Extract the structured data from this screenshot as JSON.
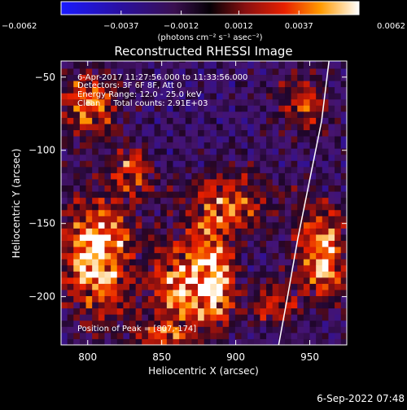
{
  "chart_data": {
    "type": "heatmap",
    "title": "Reconstructed RHESSI Image",
    "xlabel": "Heliocentric X (arcsec)",
    "ylabel": "Heliocentric Y (arcsec)",
    "xlim": [
      782,
      975
    ],
    "ylim": [
      -233,
      -39
    ],
    "xticks": [
      800,
      850,
      900,
      950
    ],
    "yticks": [
      -50,
      -100,
      -150,
      -200
    ],
    "ytick_labels": [
      "−50",
      "−100",
      "−150",
      "−200"
    ],
    "colorbar": {
      "range": [
        -0.0062,
        0.0062
      ],
      "ticks": [
        -0.0062,
        -0.0037,
        -0.0012,
        0.0012,
        0.0037,
        0.0062
      ],
      "tick_labels": [
        "−0.0062",
        "−0.0037",
        "−0.0012",
        "0.0012",
        "0.0037",
        "0.0062"
      ],
      "unit_label": "(photons cm⁻² s⁻¹ asec⁻²)"
    },
    "annotations": [
      "6-Apr-2017 11:27:56.000 to 11:33:56.000",
      "Detectors: 3F 6F 8F, Att 0",
      "Energy Range: 12.0 - 25.0 keV",
      "Clean     Total counts: 2.91E+03"
    ],
    "peak_label": "Position of Peak = [807,-174]",
    "peak": [
      807,
      -174
    ],
    "sources": [
      {
        "x": 807,
        "y": -172,
        "sx": 16,
        "sy": 28,
        "amp": 1.0
      },
      {
        "x": 885,
        "y": -188,
        "sx": 10,
        "sy": 24,
        "amp": 0.95
      },
      {
        "x": 860,
        "y": -190,
        "sx": 12,
        "sy": 20,
        "amp": 0.7
      },
      {
        "x": 958,
        "y": -170,
        "sx": 12,
        "sy": 22,
        "amp": 0.85
      },
      {
        "x": 800,
        "y": -68,
        "sx": 14,
        "sy": 16,
        "amp": 0.65
      },
      {
        "x": 830,
        "y": -115,
        "sx": 10,
        "sy": 12,
        "amp": 0.55
      },
      {
        "x": 895,
        "y": -135,
        "sx": 22,
        "sy": 15,
        "amp": 0.55
      },
      {
        "x": 945,
        "y": -68,
        "sx": 14,
        "sy": 14,
        "amp": 0.45
      },
      {
        "x": 925,
        "y": -205,
        "sx": 10,
        "sy": 10,
        "amp": 0.55
      },
      {
        "x": 850,
        "y": -225,
        "sx": 14,
        "sy": 8,
        "amp": 0.5
      }
    ],
    "limb_curve": [
      [
        963,
        -39
      ],
      [
        958,
        -80
      ],
      [
        950,
        -120
      ],
      [
        942,
        -160
      ],
      [
        935,
        -200
      ],
      [
        929,
        -233
      ]
    ]
  },
  "footer": {
    "timestamp": "6-Sep-2022 07:48"
  }
}
